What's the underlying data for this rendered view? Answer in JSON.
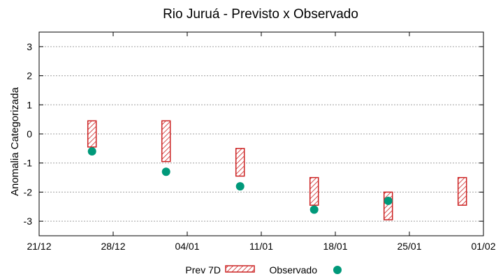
{
  "chart_data": {
    "type": "scatter",
    "title": "Rio Juruá - Previsto x Observado",
    "xlabel": "",
    "ylabel": "Anomalia Categorizada",
    "x_tick_labels": [
      "21/12",
      "28/12",
      "04/01",
      "11/01",
      "18/01",
      "25/01",
      "01/02"
    ],
    "x_tick_days": [
      0,
      7,
      14,
      21,
      28,
      35,
      42
    ],
    "xlim_days": [
      0,
      42
    ],
    "ylim": [
      -3.5,
      3.5
    ],
    "y_ticks": [
      -3,
      -2,
      -1,
      0,
      1,
      2,
      3
    ],
    "grid": true,
    "legend_position": "bottom",
    "colors": {
      "forecast": "#cc2222",
      "observed": "#00997a",
      "grid": "#a0a0a0"
    },
    "series": [
      {
        "name": "Prev 7D",
        "kind": "range",
        "dates": [
          "26/12",
          "02/01",
          "09/01",
          "16/01",
          "23/01",
          "30/01"
        ],
        "x_days": [
          5,
          12,
          19,
          26,
          33,
          40
        ],
        "low": [
          -0.45,
          -0.95,
          -1.45,
          -2.45,
          -2.95,
          -2.45
        ],
        "high": [
          0.45,
          0.45,
          -0.5,
          -1.5,
          -2.0,
          -1.5
        ]
      },
      {
        "name": "Observado",
        "kind": "points",
        "dates": [
          "26/12",
          "02/01",
          "09/01",
          "16/01",
          "23/01"
        ],
        "x_days": [
          5,
          12,
          19,
          26,
          33
        ],
        "values": [
          -0.6,
          -1.3,
          -1.8,
          -2.6,
          -2.3
        ]
      }
    ]
  }
}
